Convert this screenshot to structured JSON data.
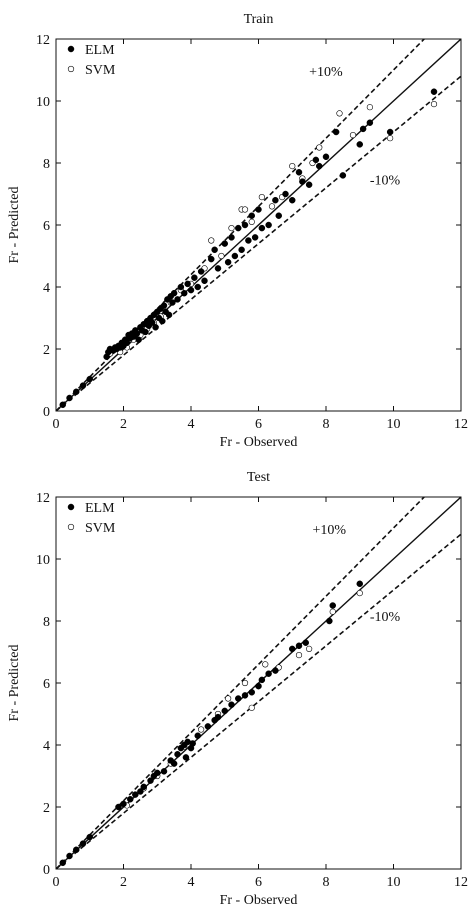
{
  "colors": {
    "axis": "#111111",
    "elm_fill": "#000000",
    "svm_fill": "#ffffff",
    "line": "#111111"
  },
  "chart_data": [
    {
      "type": "scatter",
      "title": "Train",
      "xlabel": "Fr - Observed",
      "ylabel": "Fr - Predicted",
      "xlim": [
        0,
        12
      ],
      "ylim": [
        0,
        12
      ],
      "xticks": [
        "0",
        "2",
        "4",
        "6",
        "8",
        "10",
        "12"
      ],
      "yticks": [
        "0",
        "2",
        "4",
        "6",
        "8",
        "10",
        "12"
      ],
      "grid": false,
      "legend_position": "top-left",
      "reference_lines": [
        {
          "name": "1:1",
          "slope": 1.0,
          "style": "solid"
        },
        {
          "name": "+10%",
          "slope": 1.1,
          "style": "dashed"
        },
        {
          "name": "-10%",
          "slope": 0.9,
          "style": "dashed"
        }
      ],
      "annotations": [
        {
          "text": "+10%",
          "x": 7.5,
          "y": 10.8
        },
        {
          "text": "-10%",
          "x": 9.3,
          "y": 7.3
        }
      ],
      "series": [
        {
          "name": "ELM",
          "marker": "filled-circle",
          "points": [
            [
              0.2,
              0.2
            ],
            [
              0.4,
              0.42
            ],
            [
              0.6,
              0.62
            ],
            [
              0.8,
              0.82
            ],
            [
              1.0,
              1.03
            ],
            [
              1.5,
              1.75
            ],
            [
              1.55,
              1.9
            ],
            [
              1.6,
              2.0
            ],
            [
              1.7,
              1.95
            ],
            [
              1.75,
              2.05
            ],
            [
              1.8,
              2.0
            ],
            [
              1.85,
              2.1
            ],
            [
              1.9,
              2.05
            ],
            [
              1.95,
              2.2
            ],
            [
              2.0,
              2.1
            ],
            [
              2.05,
              2.3
            ],
            [
              2.1,
              2.2
            ],
            [
              2.15,
              2.45
            ],
            [
              2.2,
              2.35
            ],
            [
              2.25,
              2.5
            ],
            [
              2.3,
              2.4
            ],
            [
              2.35,
              2.6
            ],
            [
              2.4,
              2.5
            ],
            [
              2.45,
              2.3
            ],
            [
              2.5,
              2.7
            ],
            [
              2.55,
              2.6
            ],
            [
              2.6,
              2.8
            ],
            [
              2.65,
              2.55
            ],
            [
              2.7,
              2.9
            ],
            [
              2.75,
              2.75
            ],
            [
              2.8,
              3.0
            ],
            [
              2.85,
              2.85
            ],
            [
              2.9,
              3.1
            ],
            [
              2.95,
              2.7
            ],
            [
              3.0,
              3.2
            ],
            [
              3.05,
              3.0
            ],
            [
              3.1,
              3.3
            ],
            [
              3.15,
              2.9
            ],
            [
              3.2,
              3.4
            ],
            [
              3.25,
              3.2
            ],
            [
              3.3,
              3.6
            ],
            [
              3.35,
              3.1
            ],
            [
              3.4,
              3.7
            ],
            [
              3.45,
              3.5
            ],
            [
              3.5,
              3.8
            ],
            [
              3.6,
              3.6
            ],
            [
              3.7,
              4.0
            ],
            [
              3.8,
              3.8
            ],
            [
              3.9,
              4.1
            ],
            [
              4.0,
              3.9
            ],
            [
              4.1,
              4.3
            ],
            [
              4.2,
              4.0
            ],
            [
              4.3,
              4.5
            ],
            [
              4.4,
              4.2
            ],
            [
              4.6,
              4.9
            ],
            [
              4.7,
              5.2
            ],
            [
              4.8,
              4.6
            ],
            [
              5.0,
              5.4
            ],
            [
              5.1,
              4.8
            ],
            [
              5.2,
              5.6
            ],
            [
              5.3,
              5.0
            ],
            [
              5.4,
              5.9
            ],
            [
              5.5,
              5.2
            ],
            [
              5.6,
              6.0
            ],
            [
              5.7,
              5.5
            ],
            [
              5.8,
              6.3
            ],
            [
              5.9,
              5.6
            ],
            [
              6.0,
              6.5
            ],
            [
              6.1,
              5.9
            ],
            [
              6.3,
              6.0
            ],
            [
              6.5,
              6.8
            ],
            [
              6.6,
              6.3
            ],
            [
              6.8,
              7.0
            ],
            [
              7.0,
              6.8
            ],
            [
              7.2,
              7.7
            ],
            [
              7.3,
              7.4
            ],
            [
              7.5,
              7.3
            ],
            [
              7.7,
              8.1
            ],
            [
              7.8,
              7.9
            ],
            [
              8.0,
              8.2
            ],
            [
              8.3,
              9.0
            ],
            [
              8.5,
              7.6
            ],
            [
              9.0,
              8.6
            ],
            [
              9.1,
              9.1
            ],
            [
              9.3,
              9.3
            ],
            [
              9.9,
              9.0
            ],
            [
              11.2,
              10.3
            ]
          ]
        },
        {
          "name": "SVM",
          "marker": "open-circle",
          "points": [
            [
              1.6,
              1.85
            ],
            [
              1.9,
              1.9
            ],
            [
              2.1,
              2.05
            ],
            [
              2.3,
              2.3
            ],
            [
              2.5,
              2.45
            ],
            [
              2.7,
              2.65
            ],
            [
              2.9,
              2.85
            ],
            [
              3.1,
              3.05
            ],
            [
              3.4,
              3.5
            ],
            [
              3.7,
              3.9
            ],
            [
              4.0,
              4.1
            ],
            [
              4.4,
              4.6
            ],
            [
              4.6,
              5.5
            ],
            [
              4.9,
              5.0
            ],
            [
              5.2,
              5.9
            ],
            [
              5.5,
              6.5
            ],
            [
              5.6,
              6.5
            ],
            [
              5.8,
              6.1
            ],
            [
              6.1,
              6.9
            ],
            [
              6.4,
              6.6
            ],
            [
              6.7,
              6.9
            ],
            [
              7.0,
              7.9
            ],
            [
              7.3,
              7.5
            ],
            [
              7.6,
              8.0
            ],
            [
              7.8,
              8.5
            ],
            [
              8.4,
              9.6
            ],
            [
              8.8,
              8.9
            ],
            [
              9.3,
              9.8
            ],
            [
              9.9,
              8.8
            ],
            [
              11.2,
              9.9
            ]
          ]
        }
      ]
    },
    {
      "type": "scatter",
      "title": "Test",
      "xlabel": "Fr - Observed",
      "ylabel": "Fr - Predicted",
      "xlim": [
        0,
        12
      ],
      "ylim": [
        0,
        12
      ],
      "xticks": [
        "0",
        "2",
        "4",
        "6",
        "8",
        "10",
        "12"
      ],
      "yticks": [
        "0",
        "2",
        "4",
        "6",
        "8",
        "10",
        "12"
      ],
      "grid": false,
      "legend_position": "top-left",
      "reference_lines": [
        {
          "name": "1:1",
          "slope": 1.0,
          "style": "solid"
        },
        {
          "name": "+10%",
          "slope": 1.1,
          "style": "dashed"
        },
        {
          "name": "-10%",
          "slope": 0.9,
          "style": "dashed"
        }
      ],
      "annotations": [
        {
          "text": "+10%",
          "x": 7.6,
          "y": 10.8
        },
        {
          "text": "-10%",
          "x": 9.3,
          "y": 8.0
        }
      ],
      "series": [
        {
          "name": "ELM",
          "marker": "filled-circle",
          "points": [
            [
              0.2,
              0.2
            ],
            [
              0.4,
              0.42
            ],
            [
              0.6,
              0.62
            ],
            [
              0.8,
              0.82
            ],
            [
              1.0,
              1.03
            ],
            [
              1.85,
              2.0
            ],
            [
              2.0,
              2.1
            ],
            [
              2.2,
              2.25
            ],
            [
              2.35,
              2.4
            ],
            [
              2.5,
              2.5
            ],
            [
              2.6,
              2.65
            ],
            [
              2.8,
              2.85
            ],
            [
              2.9,
              3.0
            ],
            [
              3.0,
              3.1
            ],
            [
              3.2,
              3.15
            ],
            [
              3.4,
              3.5
            ],
            [
              3.5,
              3.4
            ],
            [
              3.6,
              3.7
            ],
            [
              3.7,
              3.9
            ],
            [
              3.8,
              4.0
            ],
            [
              3.85,
              3.6
            ],
            [
              3.9,
              4.1
            ],
            [
              4.0,
              3.9
            ],
            [
              4.05,
              4.05
            ],
            [
              4.2,
              4.3
            ],
            [
              4.5,
              4.6
            ],
            [
              4.7,
              4.8
            ],
            [
              4.8,
              4.9
            ],
            [
              5.0,
              5.1
            ],
            [
              5.2,
              5.3
            ],
            [
              5.4,
              5.5
            ],
            [
              5.6,
              5.6
            ],
            [
              5.8,
              5.7
            ],
            [
              6.0,
              5.9
            ],
            [
              6.1,
              6.1
            ],
            [
              6.3,
              6.3
            ],
            [
              6.5,
              6.4
            ],
            [
              7.0,
              7.1
            ],
            [
              7.2,
              7.2
            ],
            [
              7.4,
              7.3
            ],
            [
              8.1,
              8.0
            ],
            [
              8.2,
              8.5
            ],
            [
              9.0,
              9.2
            ]
          ]
        },
        {
          "name": "SVM",
          "marker": "open-circle",
          "points": [
            [
              2.1,
              2.05
            ],
            [
              2.6,
              2.6
            ],
            [
              3.0,
              3.0
            ],
            [
              3.4,
              3.4
            ],
            [
              3.8,
              3.95
            ],
            [
              4.3,
              4.5
            ],
            [
              4.8,
              5.0
            ],
            [
              5.1,
              5.5
            ],
            [
              5.6,
              6.0
            ],
            [
              5.8,
              5.2
            ],
            [
              6.0,
              5.9
            ],
            [
              6.2,
              6.6
            ],
            [
              6.6,
              6.5
            ],
            [
              7.2,
              6.9
            ],
            [
              7.5,
              7.1
            ],
            [
              8.2,
              8.3
            ],
            [
              9.0,
              8.9
            ]
          ]
        }
      ]
    }
  ]
}
